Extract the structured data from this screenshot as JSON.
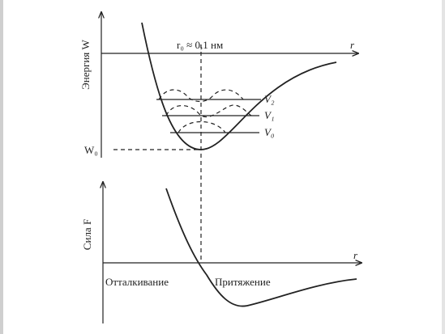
{
  "energy_plot": {
    "axis_label": "Энергия W",
    "x_axis_label": "r",
    "r0_label": "r₀ ≈ 0,1 нм",
    "w0_label": "W₀",
    "levels": [
      "V₂",
      "V₁",
      "V₀"
    ]
  },
  "force_plot": {
    "axis_label": "Сила F",
    "x_axis_label": "r",
    "repulsion_label": "Отталкивание",
    "attraction_label": "Притяжение"
  }
}
